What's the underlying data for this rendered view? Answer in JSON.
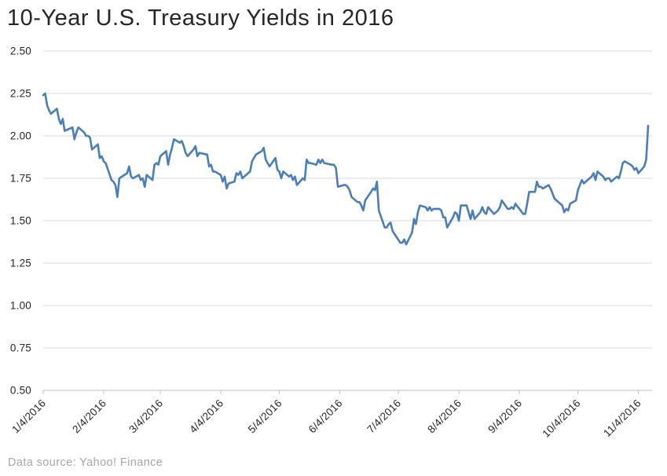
{
  "title": "10-Year U.S. Treasury Yields in 2016",
  "source_note": "Data source: Yahoo! Finance",
  "colors": {
    "series_line": "#4a7ebb",
    "gridline": "#d9d9d9",
    "axis_line": "#bfbfbf",
    "title_text": "#262626",
    "tick_text": "#262626",
    "source_text": "#a6a6a6",
    "background": "#ffffff"
  },
  "chart_data": {
    "type": "line",
    "title": "10-Year U.S. Treasury Yields in 2016",
    "xlabel": "",
    "ylabel": "",
    "legend": "none",
    "grid": "horizontal",
    "ylim": [
      0.5,
      2.5
    ],
    "y_tick_values": [
      2.5,
      2.25,
      2.0,
      1.75,
      1.5,
      1.25,
      1.0,
      0.75,
      0.5
    ],
    "y_tick_labels": [
      "2.50",
      "2.25",
      "2.00",
      "1.75",
      "1.50",
      "1.25",
      "1.00",
      "0.75",
      "0.50"
    ],
    "x_tick_labels": [
      "1/4/2016",
      "2/4/2016",
      "3/4/2016",
      "4/4/2016",
      "5/4/2016",
      "6/4/2016",
      "7/4/2016",
      "8/4/2016",
      "9/4/2016",
      "10/4/2016",
      "11/4/2016"
    ],
    "series_name": "10-Year U.S. Treasury Yield (%)",
    "x": [
      "1/4",
      "1/5",
      "1/6",
      "1/7",
      "1/8",
      "1/11",
      "1/12",
      "1/13",
      "1/14",
      "1/15",
      "1/19",
      "1/20",
      "1/21",
      "1/22",
      "1/25",
      "1/26",
      "1/27",
      "1/28",
      "1/29",
      "2/1",
      "2/2",
      "2/3",
      "2/4",
      "2/5",
      "2/8",
      "2/9",
      "2/10",
      "2/11",
      "2/12",
      "2/16",
      "2/17",
      "2/18",
      "2/19",
      "2/22",
      "2/23",
      "2/24",
      "2/25",
      "2/26",
      "2/29",
      "3/1",
      "3/2",
      "3/3",
      "3/4",
      "3/7",
      "3/8",
      "3/9",
      "3/10",
      "3/11",
      "3/14",
      "3/15",
      "3/16",
      "3/17",
      "3/18",
      "3/21",
      "3/22",
      "3/23",
      "3/24",
      "3/28",
      "3/29",
      "3/30",
      "3/31",
      "4/1",
      "4/4",
      "4/5",
      "4/6",
      "4/7",
      "4/8",
      "4/11",
      "4/12",
      "4/13",
      "4/14",
      "4/15",
      "4/18",
      "4/19",
      "4/20",
      "4/21",
      "4/22",
      "4/25",
      "4/26",
      "4/27",
      "4/28",
      "4/29",
      "5/2",
      "5/3",
      "5/4",
      "5/5",
      "5/6",
      "5/9",
      "5/10",
      "5/11",
      "5/12",
      "5/13",
      "5/16",
      "5/17",
      "5/18",
      "5/19",
      "5/20",
      "5/23",
      "5/24",
      "5/25",
      "5/26",
      "5/27",
      "5/31",
      "6/1",
      "6/2",
      "6/3",
      "6/6",
      "6/7",
      "6/8",
      "6/9",
      "6/10",
      "6/13",
      "6/14",
      "6/15",
      "6/16",
      "6/17",
      "6/20",
      "6/21",
      "6/22",
      "6/23",
      "6/24",
      "6/27",
      "6/28",
      "6/29",
      "6/30",
      "7/1",
      "7/5",
      "7/6",
      "7/7",
      "7/8",
      "7/11",
      "7/12",
      "7/13",
      "7/14",
      "7/15",
      "7/18",
      "7/19",
      "7/20",
      "7/21",
      "7/22",
      "7/25",
      "7/26",
      "7/27",
      "7/28",
      "7/29",
      "8/1",
      "8/2",
      "8/3",
      "8/4",
      "8/5",
      "8/8",
      "8/9",
      "8/10",
      "8/11",
      "8/12",
      "8/15",
      "8/16",
      "8/17",
      "8/18",
      "8/19",
      "8/22",
      "8/23",
      "8/24",
      "8/25",
      "8/26",
      "8/29",
      "8/30",
      "8/31",
      "9/1",
      "9/2",
      "9/6",
      "9/7",
      "9/8",
      "9/9",
      "9/12",
      "9/13",
      "9/14",
      "9/15",
      "9/16",
      "9/19",
      "9/20",
      "9/21",
      "9/22",
      "9/23",
      "9/26",
      "9/27",
      "9/28",
      "9/29",
      "9/30",
      "10/3",
      "10/4",
      "10/5",
      "10/6",
      "10/7",
      "10/11",
      "10/12",
      "10/13",
      "10/14",
      "10/17",
      "10/18",
      "10/19",
      "10/20",
      "10/21",
      "10/24",
      "10/25",
      "10/26",
      "10/27",
      "10/28",
      "10/31",
      "11/1",
      "11/2",
      "11/3",
      "11/4",
      "11/7",
      "11/8",
      "11/9"
    ],
    "y": [
      2.24,
      2.25,
      2.18,
      2.15,
      2.13,
      2.16,
      2.1,
      2.07,
      2.1,
      2.03,
      2.05,
      1.98,
      2.02,
      2.05,
      2.02,
      2.0,
      2.0,
      1.99,
      1.92,
      1.95,
      1.87,
      1.88,
      1.85,
      1.84,
      1.74,
      1.73,
      1.71,
      1.64,
      1.75,
      1.78,
      1.82,
      1.76,
      1.75,
      1.77,
      1.74,
      1.75,
      1.7,
      1.77,
      1.74,
      1.83,
      1.84,
      1.83,
      1.88,
      1.91,
      1.83,
      1.89,
      1.93,
      1.98,
      1.96,
      1.97,
      1.94,
      1.9,
      1.88,
      1.92,
      1.94,
      1.88,
      1.9,
      1.89,
      1.82,
      1.83,
      1.79,
      1.79,
      1.77,
      1.73,
      1.76,
      1.69,
      1.72,
      1.73,
      1.78,
      1.77,
      1.79,
      1.75,
      1.78,
      1.79,
      1.85,
      1.87,
      1.89,
      1.91,
      1.93,
      1.86,
      1.84,
      1.82,
      1.87,
      1.8,
      1.79,
      1.75,
      1.79,
      1.76,
      1.77,
      1.74,
      1.76,
      1.71,
      1.75,
      1.74,
      1.86,
      1.84,
      1.84,
      1.83,
      1.86,
      1.84,
      1.86,
      1.84,
      1.83,
      1.83,
      1.81,
      1.7,
      1.71,
      1.71,
      1.7,
      1.68,
      1.64,
      1.61,
      1.61,
      1.59,
      1.56,
      1.62,
      1.67,
      1.69,
      1.68,
      1.73,
      1.56,
      1.46,
      1.46,
      1.48,
      1.49,
      1.44,
      1.37,
      1.37,
      1.39,
      1.36,
      1.43,
      1.51,
      1.48,
      1.55,
      1.59,
      1.58,
      1.56,
      1.58,
      1.56,
      1.57,
      1.57,
      1.56,
      1.52,
      1.52,
      1.46,
      1.52,
      1.55,
      1.54,
      1.5,
      1.59,
      1.59,
      1.55,
      1.51,
      1.56,
      1.51,
      1.55,
      1.58,
      1.55,
      1.54,
      1.58,
      1.54,
      1.55,
      1.56,
      1.58,
      1.62,
      1.57,
      1.57,
      1.58,
      1.57,
      1.6,
      1.54,
      1.54,
      1.6,
      1.67,
      1.67,
      1.73,
      1.7,
      1.7,
      1.69,
      1.71,
      1.69,
      1.66,
      1.63,
      1.62,
      1.59,
      1.55,
      1.57,
      1.56,
      1.6,
      1.62,
      1.68,
      1.71,
      1.74,
      1.72,
      1.76,
      1.78,
      1.74,
      1.79,
      1.76,
      1.74,
      1.75,
      1.75,
      1.73,
      1.76,
      1.75,
      1.79,
      1.84,
      1.85,
      1.83,
      1.82,
      1.8,
      1.81,
      1.78,
      1.82,
      1.86,
      2.06
    ]
  }
}
